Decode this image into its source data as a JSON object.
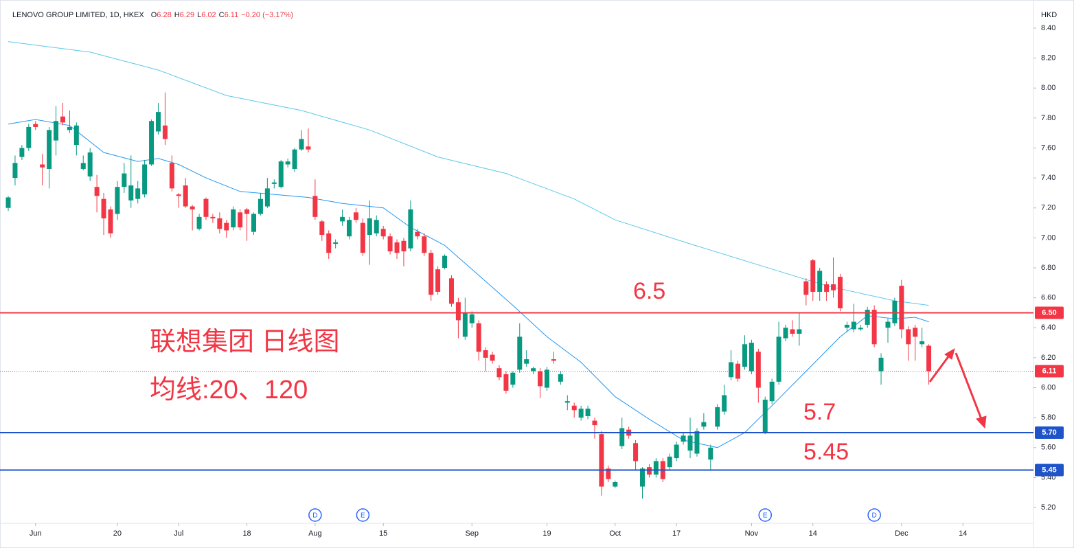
{
  "header": {
    "symbol": "LENOVO GROUP LIMITED, 1D, HKEX",
    "ohlc": [
      {
        "key": "O",
        "value": 6.28
      },
      {
        "key": "H",
        "value": 6.29
      },
      {
        "key": "L",
        "value": 6.02
      },
      {
        "key": "C",
        "value": 6.11
      }
    ],
    "change": "−0.20 (−3.17%)"
  },
  "chart_data": {
    "type": "candlestick",
    "unit": "HKD",
    "up_color": "#089981",
    "down_color": "#f23645",
    "open": [
      7.2,
      7.4,
      7.54,
      7.6,
      7.76,
      7.49,
      7.46,
      7.65,
      7.81,
      7.72,
      7.62,
      7.46,
      7.41,
      7.34,
      7.26,
      7.19,
      7.16,
      7.34,
      7.25,
      7.26,
      7.29,
      7.49,
      7.71,
      7.75,
      7.5,
      7.29,
      7.35,
      7.21,
      7.06,
      7.26,
      7.14,
      7.13,
      7.1,
      7.07,
      7.17,
      7.19,
      7.04,
      7.16,
      7.21,
      7.36,
      7.34,
      7.49,
      7.46,
      7.59,
      7.61,
      7.28,
      7.11,
      7.03,
      6.96,
      7.11,
      7.01,
      7.17,
      7.1,
      7.02,
      7.03,
      7.06,
      7.01,
      6.97,
      6.98,
      6.93,
      7.04,
      7.01,
      6.9,
      6.79,
      6.8,
      6.73,
      6.57,
      6.34,
      6.43,
      6.43,
      6.25,
      6.22,
      6.13,
      6.09,
      6.02,
      6.12,
      6.16,
      6.11,
      6.11,
      6.0,
      6.19,
      6.04,
      5.9,
      5.88,
      5.8,
      5.81,
      5.78,
      5.69,
      5.46,
      5.34,
      5.61,
      5.72,
      5.63,
      5.34,
      5.47,
      5.42,
      5.51,
      5.47,
      5.53,
      5.64,
      5.58,
      5.56,
      5.74,
      5.52,
      5.74,
      5.84,
      6.07,
      6.16,
      6.14,
      6.11,
      6.24,
      5.7,
      5.91,
      6.04,
      6.33,
      6.39,
      6.36,
      6.71,
      6.85,
      6.64,
      6.69,
      6.69,
      6.74,
      6.4,
      6.39,
      6.39,
      6.42,
      6.52,
      6.11,
      6.4,
      6.43,
      6.68,
      6.39,
      6.4,
      6.29,
      6.28
    ],
    "high": [
      7.28,
      7.55,
      7.62,
      7.76,
      7.78,
      7.56,
      7.74,
      7.88,
      7.9,
      7.85,
      7.77,
      7.55,
      7.6,
      7.42,
      7.3,
      7.21,
      7.38,
      7.5,
      7.55,
      7.38,
      7.52,
      7.79,
      7.9,
      7.97,
      7.55,
      7.3,
      7.4,
      7.22,
      7.16,
      7.27,
      7.16,
      7.17,
      7.12,
      7.21,
      7.19,
      7.2,
      7.17,
      7.3,
      7.4,
      7.39,
      7.52,
      7.53,
      7.6,
      7.72,
      7.73,
      7.39,
      7.12,
      7.05,
      6.99,
      7.19,
      7.14,
      7.2,
      7.13,
      7.25,
      7.15,
      7.08,
      7.03,
      6.99,
      7.0,
      7.25,
      7.06,
      7.03,
      6.92,
      6.81,
      6.89,
      6.75,
      6.6,
      6.6,
      6.51,
      6.45,
      6.27,
      6.24,
      6.15,
      6.11,
      6.11,
      6.43,
      6.25,
      6.14,
      6.13,
      6.14,
      6.24,
      6.11,
      5.95,
      5.9,
      5.88,
      5.88,
      5.8,
      5.71,
      5.48,
      5.38,
      5.8,
      5.74,
      5.65,
      5.47,
      5.49,
      5.53,
      5.53,
      5.56,
      5.64,
      5.7,
      5.8,
      5.73,
      5.83,
      5.62,
      5.89,
      6.02,
      6.25,
      6.18,
      6.35,
      6.32,
      6.26,
      5.94,
      6.06,
      6.44,
      6.42,
      6.45,
      6.5,
      6.73,
      6.86,
      6.8,
      6.71,
      6.87,
      6.76,
      6.44,
      6.56,
      6.42,
      6.54,
      6.55,
      6.23,
      6.46,
      6.6,
      6.72,
      6.41,
      6.42,
      6.4,
      6.29
    ],
    "low": [
      7.18,
      7.35,
      7.52,
      7.58,
      7.72,
      7.35,
      7.33,
      7.55,
      7.75,
      7.7,
      7.55,
      7.45,
      7.38,
      7.17,
      7.02,
      7.0,
      7.12,
      7.3,
      7.2,
      7.23,
      7.27,
      7.48,
      7.69,
      7.62,
      7.31,
      7.2,
      7.2,
      7.05,
      7.05,
      7.12,
      7.1,
      7.03,
      7.0,
      7.05,
      7.05,
      6.98,
      7.02,
      7.15,
      7.2,
      7.33,
      7.33,
      7.47,
      7.44,
      7.58,
      7.57,
      7.12,
      6.98,
      6.86,
      6.93,
      7.08,
      6.99,
      7.1,
      6.88,
      6.82,
      7.01,
      6.99,
      6.89,
      6.86,
      6.81,
      6.91,
      6.99,
      6.88,
      6.58,
      6.62,
      6.79,
      6.54,
      6.33,
      6.32,
      6.4,
      6.18,
      6.11,
      6.16,
      6.05,
      5.96,
      6.0,
      6.1,
      6.14,
      6.09,
      5.93,
      5.98,
      6.16,
      6.02,
      5.85,
      5.8,
      5.78,
      5.79,
      5.66,
      5.28,
      5.37,
      5.33,
      5.59,
      5.66,
      5.45,
      5.26,
      5.4,
      5.4,
      5.37,
      5.45,
      5.51,
      5.62,
      5.53,
      5.54,
      5.72,
      5.45,
      5.72,
      5.82,
      6.05,
      6.04,
      6.12,
      6.09,
      5.9,
      5.69,
      5.89,
      6.02,
      6.31,
      6.34,
      6.28,
      6.55,
      6.58,
      6.58,
      6.58,
      6.6,
      6.51,
      6.37,
      6.37,
      6.38,
      6.4,
      6.27,
      6.02,
      6.3,
      6.41,
      6.33,
      6.18,
      6.18,
      6.27,
      6.02
    ],
    "close": [
      7.27,
      7.5,
      7.6,
      7.74,
      7.74,
      7.47,
      7.72,
      7.78,
      7.77,
      7.74,
      7.75,
      7.5,
      7.57,
      7.28,
      7.13,
      7.03,
      7.34,
      7.43,
      7.35,
      7.33,
      7.49,
      7.78,
      7.84,
      7.66,
      7.33,
      7.28,
      7.21,
      7.19,
      7.14,
      7.14,
      7.13,
      7.06,
      7.05,
      7.19,
      7.07,
      7.16,
      7.16,
      7.26,
      7.33,
      7.37,
      7.51,
      7.51,
      7.59,
      7.66,
      7.59,
      7.14,
      7.02,
      6.9,
      6.97,
      7.14,
      7.12,
      7.12,
      6.9,
      7.13,
      7.12,
      7.01,
      6.91,
      6.9,
      6.91,
      7.19,
      7.01,
      6.9,
      6.62,
      6.64,
      6.88,
      6.56,
      6.45,
      6.5,
      6.49,
      6.24,
      6.2,
      6.18,
      6.07,
      5.98,
      6.1,
      6.34,
      6.19,
      6.13,
      6.01,
      6.12,
      6.18,
      6.09,
      5.91,
      5.85,
      5.86,
      5.86,
      5.75,
      5.34,
      5.39,
      5.37,
      5.73,
      5.68,
      5.51,
      5.46,
      5.42,
      5.51,
      5.39,
      5.54,
      5.62,
      5.68,
      5.68,
      5.71,
      5.77,
      5.6,
      5.87,
      5.95,
      6.17,
      6.06,
      6.29,
      6.3,
      6.0,
      5.92,
      6.04,
      6.34,
      6.4,
      6.36,
      6.39,
      6.62,
      6.64,
      6.78,
      6.64,
      6.65,
      6.53,
      6.42,
      6.44,
      6.4,
      6.52,
      6.29,
      6.2,
      6.44,
      6.58,
      6.39,
      6.29,
      6.34,
      6.31,
      6.11
    ],
    "lines": [
      {
        "color": "#5bc8e8",
        "x": [
          0,
          12,
          22,
          32,
          43,
          53,
          63,
          73,
          83,
          89,
          100,
          110,
          120,
          130,
          135
        ],
        "values": [
          8.31,
          8.24,
          8.12,
          7.95,
          7.85,
          7.72,
          7.54,
          7.43,
          7.26,
          7.12,
          6.96,
          6.82,
          6.68,
          6.58,
          6.55
        ]
      },
      {
        "color": "#2196f3",
        "x": [
          0,
          4,
          9,
          14,
          19,
          22,
          25,
          29,
          34,
          39,
          44,
          49,
          55,
          59,
          64,
          69,
          74,
          79,
          84,
          89,
          94,
          99,
          104,
          108,
          112,
          117,
          122,
          126,
          130,
          133,
          135
        ],
        "values": [
          7.76,
          7.79,
          7.75,
          7.57,
          7.51,
          7.53,
          7.49,
          7.4,
          7.31,
          7.29,
          7.27,
          7.23,
          7.2,
          7.07,
          6.95,
          6.75,
          6.55,
          6.34,
          6.17,
          5.94,
          5.79,
          5.65,
          5.6,
          5.7,
          5.88,
          6.11,
          6.34,
          6.48,
          6.46,
          6.47,
          6.44
        ]
      }
    ],
    "levels": [
      {
        "value": 6.5,
        "label": "6.50",
        "color": "#f23645"
      },
      {
        "value": 5.7,
        "label": "5.70",
        "color": "#1e53c9"
      },
      {
        "value": 5.45,
        "label": "5.45",
        "color": "#1e53c9"
      }
    ],
    "last": {
      "value": 6.11,
      "label": "6.11",
      "color": "#f23645"
    },
    "events": [
      {
        "x": 45,
        "label": "D"
      },
      {
        "x": 52,
        "label": "E"
      },
      {
        "x": 111,
        "label": "E"
      },
      {
        "x": 127,
        "label": "D"
      }
    ],
    "xlim": [
      -1.21,
      150.35
    ],
    "xticks": [
      {
        "value": 4,
        "label": "Jun"
      },
      {
        "value": 16,
        "label": "20"
      },
      {
        "value": 25,
        "label": "Jul"
      },
      {
        "value": 35,
        "label": "18"
      },
      {
        "value": 45,
        "label": "Aug"
      },
      {
        "value": 55,
        "label": "15"
      },
      {
        "value": 68,
        "label": "Sep"
      },
      {
        "value": 79,
        "label": "19"
      },
      {
        "value": 89,
        "label": "Oct"
      },
      {
        "value": 98,
        "label": "17"
      },
      {
        "value": 109,
        "label": "Nov"
      },
      {
        "value": 118,
        "label": "14"
      },
      {
        "value": 131,
        "label": "Dec"
      },
      {
        "value": 140,
        "label": "14"
      }
    ],
    "ylim": [
      5.095,
      8.551
    ],
    "yticks": [
      {
        "value": 5.2,
        "label": "5.20"
      },
      {
        "value": 5.4,
        "label": "5.40"
      },
      {
        "value": 5.6,
        "label": "5.60"
      },
      {
        "value": 5.8,
        "label": "5.80"
      },
      {
        "value": 6.0,
        "label": "6.00"
      },
      {
        "value": 6.2,
        "label": "6.20"
      },
      {
        "value": 6.4,
        "label": "6.40"
      },
      {
        "value": 6.6,
        "label": "6.60"
      },
      {
        "value": 6.8,
        "label": "6.80"
      },
      {
        "value": 7.0,
        "label": "7.00"
      },
      {
        "value": 7.2,
        "label": "7.20"
      },
      {
        "value": 7.4,
        "label": "7.40"
      },
      {
        "value": 7.6,
        "label": "7.60"
      },
      {
        "value": 7.8,
        "label": "7.80"
      },
      {
        "value": 8.0,
        "label": "8.00"
      },
      {
        "value": 8.2,
        "label": "8.20"
      },
      {
        "value": 8.4,
        "label": "8.40"
      }
    ],
    "annotations": [
      "联想集团 日线图",
      "均线:20、120",
      "6.5",
      "5.7",
      "5.45"
    ]
  }
}
